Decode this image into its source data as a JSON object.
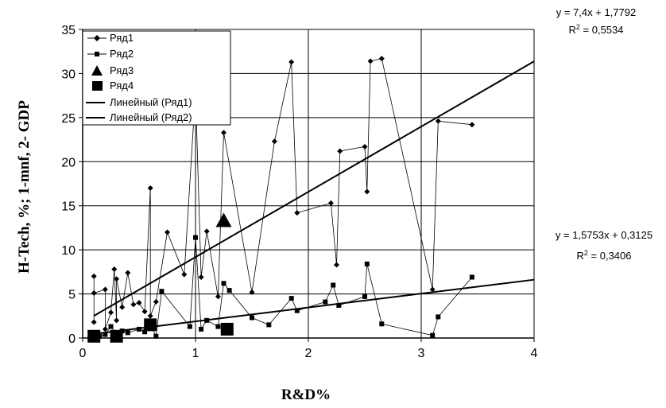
{
  "chart_data": {
    "type": "scatter",
    "xlabel": "R&D%",
    "ylabel": "H-Tech, %; 1-mnf, 2- GDP",
    "xlim": [
      0,
      4
    ],
    "ylim": [
      0,
      35
    ],
    "x_ticks": [
      0,
      1,
      2,
      3,
      4
    ],
    "y_ticks": [
      0,
      5,
      10,
      15,
      20,
      25,
      30,
      35
    ],
    "grid": true,
    "legend_placement": "top-left",
    "series": [
      {
        "name": "Ряд1",
        "marker": "diamond",
        "points": [
          [
            0.1,
            1.8
          ],
          [
            0.1,
            7.0
          ],
          [
            0.1,
            5.1
          ],
          [
            0.2,
            5.5
          ],
          [
            0.2,
            1.0
          ],
          [
            0.25,
            2.9
          ],
          [
            0.28,
            7.8
          ],
          [
            0.3,
            2.0
          ],
          [
            0.3,
            6.7
          ],
          [
            0.35,
            3.5
          ],
          [
            0.4,
            7.4
          ],
          [
            0.45,
            3.8
          ],
          [
            0.5,
            4.0
          ],
          [
            0.55,
            3.0
          ],
          [
            0.6,
            17.0
          ],
          [
            0.6,
            2.5
          ],
          [
            0.65,
            4.1
          ],
          [
            0.75,
            12.0
          ],
          [
            0.9,
            7.2
          ],
          [
            1.0,
            28.0
          ],
          [
            1.05,
            6.9
          ],
          [
            1.1,
            12.1
          ],
          [
            1.2,
            4.7
          ],
          [
            1.25,
            23.3
          ],
          [
            1.5,
            5.2
          ],
          [
            1.7,
            22.3
          ],
          [
            1.85,
            31.3
          ],
          [
            1.9,
            14.2
          ],
          [
            2.2,
            15.3
          ],
          [
            2.25,
            8.3
          ],
          [
            2.28,
            21.2
          ],
          [
            2.5,
            21.7
          ],
          [
            2.52,
            16.6
          ],
          [
            2.55,
            31.4
          ],
          [
            2.65,
            31.7
          ],
          [
            3.1,
            5.5
          ],
          [
            3.15,
            24.6
          ],
          [
            3.45,
            24.2
          ]
        ]
      },
      {
        "name": "Ряд2",
        "marker": "square",
        "points": [
          [
            0.1,
            0.3
          ],
          [
            0.15,
            0.2
          ],
          [
            0.2,
            0.4
          ],
          [
            0.25,
            1.3
          ],
          [
            0.3,
            0.5
          ],
          [
            0.35,
            0.8
          ],
          [
            0.4,
            0.6
          ],
          [
            0.5,
            1.0
          ],
          [
            0.55,
            0.7
          ],
          [
            0.6,
            1.5
          ],
          [
            0.65,
            0.2
          ],
          [
            0.7,
            5.3
          ],
          [
            0.95,
            1.3
          ],
          [
            1.0,
            11.4
          ],
          [
            1.05,
            1.0
          ],
          [
            1.1,
            2.0
          ],
          [
            1.2,
            1.3
          ],
          [
            1.25,
            6.2
          ],
          [
            1.3,
            5.4
          ],
          [
            1.5,
            2.3
          ],
          [
            1.65,
            1.5
          ],
          [
            1.85,
            4.5
          ],
          [
            1.9,
            3.1
          ],
          [
            2.15,
            4.1
          ],
          [
            2.22,
            6.0
          ],
          [
            2.27,
            3.7
          ],
          [
            2.5,
            4.7
          ],
          [
            2.52,
            8.4
          ],
          [
            2.65,
            1.6
          ],
          [
            3.1,
            0.3
          ],
          [
            3.15,
            2.4
          ],
          [
            3.45,
            6.9
          ]
        ]
      },
      {
        "name": "Ряд3",
        "marker": "triangle",
        "points": [
          [
            1.25,
            13.3
          ]
        ]
      },
      {
        "name": "Ряд4",
        "marker": "big-square",
        "points": [
          [
            0.1,
            0.2
          ],
          [
            0.3,
            0.2
          ],
          [
            0.6,
            1.5
          ],
          [
            1.28,
            1.0
          ]
        ]
      }
    ],
    "trendlines": [
      {
        "name": "Линейный (Ряд1)",
        "slope": 7.4,
        "intercept": 1.7792,
        "x_range": [
          0.1,
          4
        ],
        "equation": "y = 7,4x + 1,7792",
        "r2_prefix": "R",
        "r2_value": " = 0,5534"
      },
      {
        "name": "Линейный (Ряд2)",
        "slope": 1.5753,
        "intercept": 0.3125,
        "x_range": [
          0.1,
          4
        ],
        "equation": "y = 1,5753x + 0,3125",
        "r2_prefix": "R",
        "r2_value": " = 0,3406"
      }
    ],
    "r2_exponent": "2",
    "colors": {
      "series": "#000000",
      "grid": "#000000",
      "background": "#ffffff"
    }
  }
}
